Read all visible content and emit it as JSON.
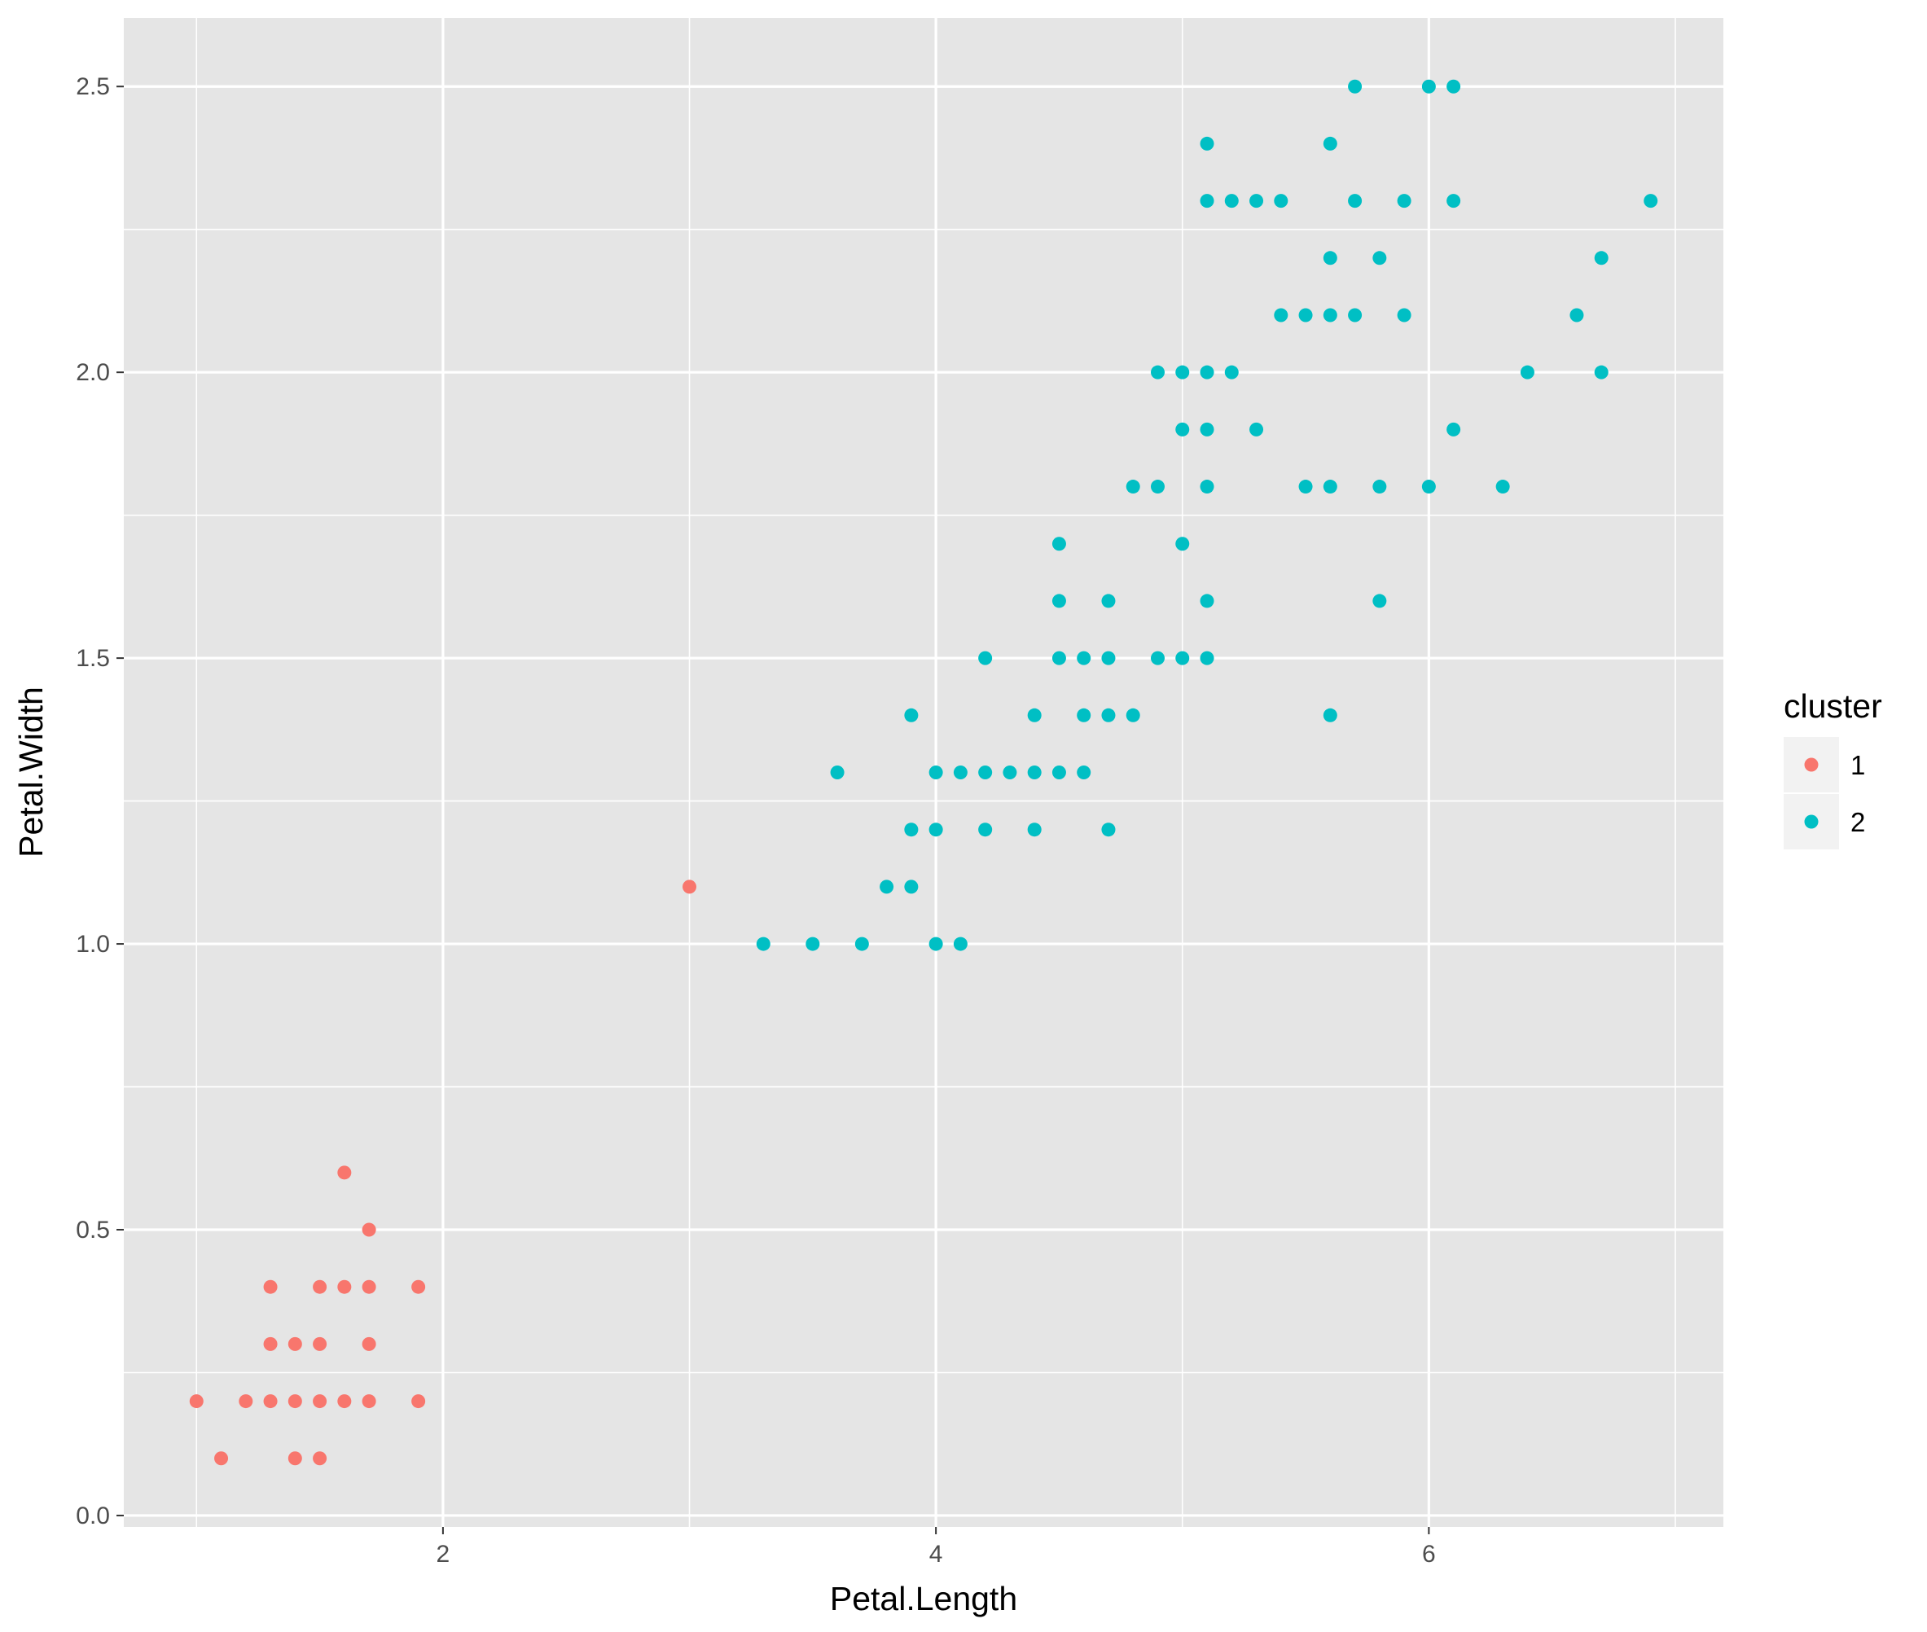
{
  "chart_data": {
    "type": "scatter",
    "title": "",
    "xlabel": "Petal.Length",
    "ylabel": "Petal.Width",
    "xlim": [
      0.705,
      7.195
    ],
    "ylim": [
      -0.02,
      2.62
    ],
    "x_major_ticks": [
      2,
      4,
      6
    ],
    "x_minor_ticks": [
      1,
      3,
      5,
      7
    ],
    "y_major_ticks": [
      0,
      0.5,
      1,
      1.5,
      2,
      2.5
    ],
    "y_minor_ticks": [
      0.25,
      0.75,
      1.25,
      1.75,
      2.25
    ],
    "x_tick_labels": [
      "2",
      "4",
      "6"
    ],
    "y_tick_labels": [
      "0.0",
      "0.5",
      "1.0",
      "1.5",
      "2.0",
      "2.5"
    ],
    "grid": true,
    "background": "#e5e5e5",
    "legend": {
      "title": "cluster",
      "position": "right"
    },
    "series": [
      {
        "name": "1",
        "color": "#f8766d",
        "points": [
          [
            1.0,
            0.2
          ],
          [
            1.1,
            0.1
          ],
          [
            1.2,
            0.2
          ],
          [
            1.3,
            0.2
          ],
          [
            1.3,
            0.3
          ],
          [
            1.3,
            0.4
          ],
          [
            1.4,
            0.1
          ],
          [
            1.4,
            0.2
          ],
          [
            1.4,
            0.3
          ],
          [
            1.5,
            0.1
          ],
          [
            1.5,
            0.2
          ],
          [
            1.5,
            0.3
          ],
          [
            1.5,
            0.4
          ],
          [
            1.6,
            0.2
          ],
          [
            1.6,
            0.4
          ],
          [
            1.6,
            0.6
          ],
          [
            1.7,
            0.2
          ],
          [
            1.7,
            0.3
          ],
          [
            1.7,
            0.4
          ],
          [
            1.7,
            0.5
          ],
          [
            1.9,
            0.2
          ],
          [
            1.9,
            0.4
          ],
          [
            3.0,
            1.1
          ]
        ]
      },
      {
        "name": "2",
        "color": "#00bfc4",
        "points": [
          [
            3.3,
            1.0
          ],
          [
            3.5,
            1.0
          ],
          [
            3.6,
            1.3
          ],
          [
            3.7,
            1.0
          ],
          [
            3.8,
            1.1
          ],
          [
            3.9,
            1.1
          ],
          [
            3.9,
            1.2
          ],
          [
            3.9,
            1.4
          ],
          [
            4.0,
            1.0
          ],
          [
            4.0,
            1.2
          ],
          [
            4.0,
            1.3
          ],
          [
            4.1,
            1.0
          ],
          [
            4.1,
            1.3
          ],
          [
            4.2,
            1.2
          ],
          [
            4.2,
            1.3
          ],
          [
            4.2,
            1.5
          ],
          [
            4.3,
            1.3
          ],
          [
            4.4,
            1.2
          ],
          [
            4.4,
            1.3
          ],
          [
            4.4,
            1.4
          ],
          [
            4.5,
            1.3
          ],
          [
            4.5,
            1.5
          ],
          [
            4.5,
            1.6
          ],
          [
            4.5,
            1.7
          ],
          [
            4.6,
            1.3
          ],
          [
            4.6,
            1.4
          ],
          [
            4.6,
            1.5
          ],
          [
            4.7,
            1.2
          ],
          [
            4.7,
            1.4
          ],
          [
            4.7,
            1.5
          ],
          [
            4.7,
            1.6
          ],
          [
            4.8,
            1.4
          ],
          [
            4.8,
            1.8
          ],
          [
            4.9,
            1.5
          ],
          [
            4.9,
            1.8
          ],
          [
            4.9,
            2.0
          ],
          [
            5.0,
            1.5
          ],
          [
            5.0,
            1.7
          ],
          [
            5.0,
            1.9
          ],
          [
            5.0,
            2.0
          ],
          [
            5.1,
            1.5
          ],
          [
            5.1,
            1.6
          ],
          [
            5.1,
            1.8
          ],
          [
            5.1,
            1.9
          ],
          [
            5.1,
            2.0
          ],
          [
            5.1,
            2.3
          ],
          [
            5.1,
            2.4
          ],
          [
            5.2,
            2.0
          ],
          [
            5.2,
            2.3
          ],
          [
            5.3,
            1.9
          ],
          [
            5.3,
            2.3
          ],
          [
            5.4,
            2.1
          ],
          [
            5.4,
            2.3
          ],
          [
            5.5,
            1.8
          ],
          [
            5.5,
            2.1
          ],
          [
            5.6,
            1.4
          ],
          [
            5.6,
            1.8
          ],
          [
            5.6,
            2.1
          ],
          [
            5.6,
            2.2
          ],
          [
            5.6,
            2.4
          ],
          [
            5.7,
            2.1
          ],
          [
            5.7,
            2.3
          ],
          [
            5.7,
            2.5
          ],
          [
            5.8,
            1.6
          ],
          [
            5.8,
            1.8
          ],
          [
            5.8,
            2.2
          ],
          [
            5.9,
            2.1
          ],
          [
            5.9,
            2.3
          ],
          [
            6.0,
            1.8
          ],
          [
            6.0,
            2.5
          ],
          [
            6.1,
            1.9
          ],
          [
            6.1,
            2.3
          ],
          [
            6.1,
            2.5
          ],
          [
            6.3,
            1.8
          ],
          [
            6.4,
            2.0
          ],
          [
            6.6,
            2.1
          ],
          [
            6.7,
            2.0
          ],
          [
            6.7,
            2.2
          ],
          [
            6.9,
            2.3
          ]
        ]
      }
    ]
  }
}
